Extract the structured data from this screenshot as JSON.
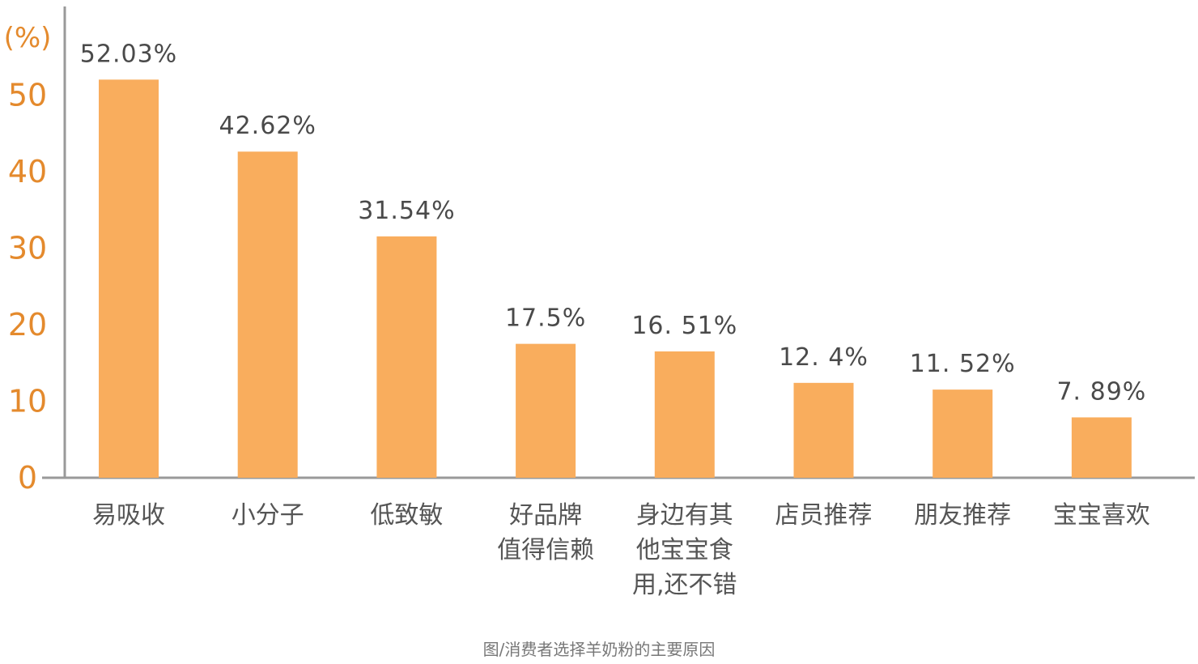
{
  "chart_data": {
    "type": "bar",
    "y_unit_label": "(%)",
    "yticks": [
      "0",
      "10",
      "20",
      "30",
      "40",
      "50"
    ],
    "ylim": [
      0,
      55
    ],
    "grid": false,
    "bar_color": "#f9ad5d",
    "axis_color": "#999999",
    "tick_color": "#e48a2d",
    "categories": [
      {
        "lines": [
          "易吸收"
        ]
      },
      {
        "lines": [
          "小分子"
        ]
      },
      {
        "lines": [
          "低致敏"
        ]
      },
      {
        "lines": [
          "好品牌",
          "值得信赖"
        ]
      },
      {
        "lines": [
          "身边有其",
          "他宝宝食",
          "用,还不错"
        ]
      },
      {
        "lines": [
          "店员推荐"
        ]
      },
      {
        "lines": [
          "朋友推荐"
        ]
      },
      {
        "lines": [
          "宝宝喜欢"
        ]
      }
    ],
    "values": [
      52.03,
      42.62,
      31.54,
      17.5,
      16.51,
      12.4,
      11.52,
      7.89
    ],
    "value_labels": [
      "52.03%",
      "42.62%",
      "31.54%",
      "17.5%",
      "16. 51%",
      "12. 4%",
      "11. 52%",
      "7. 89%"
    ],
    "caption": "图/消费者选择羊奶粉的主要原因"
  }
}
